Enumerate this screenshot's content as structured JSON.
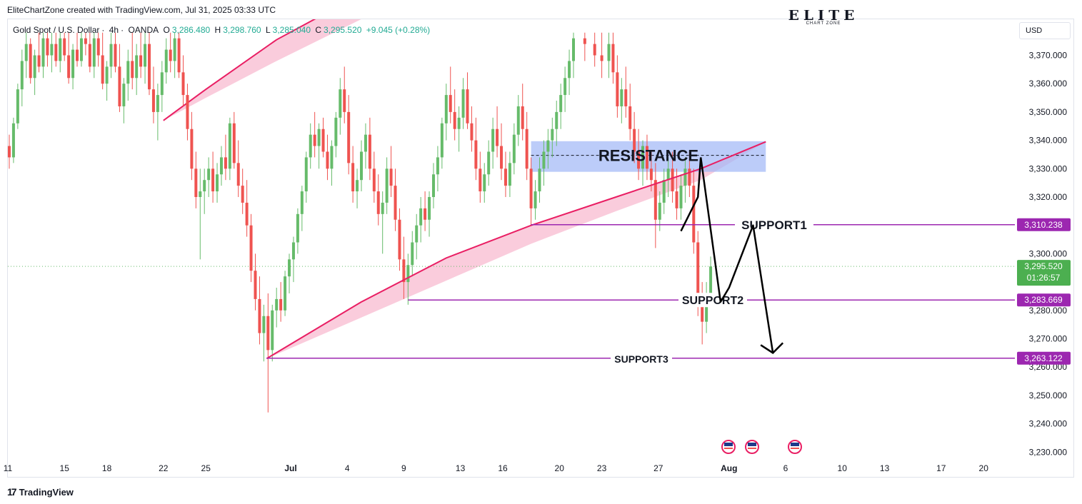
{
  "attribution": "EliteChartZone created with TradingView.com, Jul 31, 2025 03:33 UTC",
  "symbol": {
    "name": "Gold Spot / U.S. Dollar",
    "interval": "4h",
    "source": "OANDA",
    "open_label": "O",
    "open": "3,286.480",
    "high_label": "H",
    "high": "3,298.760",
    "low_label": "L",
    "low": "3,285.040",
    "close_label": "C",
    "close": "3,295.520",
    "change": "+9.045 (+0.28%)"
  },
  "currency": "USD",
  "brand_logo": {
    "small": "CHART ZONE"
  },
  "footer_logo": "TradingView",
  "colors": {
    "up": "#22ab94",
    "down": "#f23645",
    "candle_up": "#66bb6a",
    "candle_down": "#ef5350",
    "trend_line": "#e91e63",
    "channel_fill": "#f8bbd0",
    "resistance_zone": "#9fb7f7",
    "support_line": "#9c27b0",
    "support_tag": "#9c27b0",
    "price_tag": "#4caf50",
    "arrow": "#000000"
  },
  "chart_data": {
    "type": "candlestick",
    "y_ticks": [
      "3,370.000",
      "3,360.000",
      "3,350.000",
      "3,340.000",
      "3,330.000",
      "3,320.000",
      "3,300.000",
      "3,280.000",
      "3,270.000",
      "3,260.000",
      "3,250.000",
      "3,240.000",
      "3,230.000"
    ],
    "x_ticks": [
      {
        "label": "11",
        "day": 11
      },
      {
        "label": "15",
        "day": 15
      },
      {
        "label": "18",
        "day": 18
      },
      {
        "label": "22",
        "day": 22
      },
      {
        "label": "25",
        "day": 25
      },
      {
        "label": "Jul",
        "day": 31,
        "bold": true
      },
      {
        "label": "4",
        "day": 35
      },
      {
        "label": "9",
        "day": 39
      },
      {
        "label": "13",
        "day": 43
      },
      {
        "label": "16",
        "day": 46
      },
      {
        "label": "20",
        "day": 50
      },
      {
        "label": "23",
        "day": 53
      },
      {
        "label": "27",
        "day": 57
      },
      {
        "label": "Aug",
        "day": 62,
        "bold": true
      },
      {
        "label": "6",
        "day": 66
      },
      {
        "label": "10",
        "day": 70
      },
      {
        "label": "13",
        "day": 73
      },
      {
        "label": "17",
        "day": 77
      },
      {
        "label": "20",
        "day": 80
      }
    ],
    "ylim": [
      3226,
      3378
    ],
    "current_price": {
      "value": 3295.52,
      "label": "3,295.520",
      "countdown": "01:26:57"
    },
    "resistance_zone": {
      "label": "RESISTANCE",
      "low": 3328.9,
      "high": 3339.7,
      "mid": 3334.7,
      "day_start": 48.0,
      "day_end": 64.6
    },
    "supports": [
      {
        "label": "SUPPORT1",
        "value": 3310.238,
        "tag": "3,310.238",
        "day_start": 48.0
      },
      {
        "label": "SUPPORT2",
        "value": 3283.669,
        "tag": "3,283.669",
        "day_start": 39.3
      },
      {
        "label": "SUPPORT3",
        "value": 3263.122,
        "tag": "3,263.122",
        "day_start": 29.3
      }
    ],
    "channel_lower": [
      [
        29.3,
        3263.0
      ],
      [
        36.0,
        3283.0
      ],
      [
        42.0,
        3298.5
      ],
      [
        48.0,
        3310.0
      ],
      [
        54.0,
        3320.0
      ],
      [
        60.0,
        3330.0
      ],
      [
        64.6,
        3339.5
      ]
    ],
    "channel_upper_start": [
      [
        29.3,
        3263.0
      ],
      [
        36.0,
        3277.5
      ],
      [
        42.0,
        3290.5
      ],
      [
        48.0,
        3303.5
      ],
      [
        54.0,
        3315.0
      ],
      [
        60.0,
        3326.0
      ]
    ],
    "channel_left_lower": [
      [
        22.0,
        3347.0
      ],
      [
        25.0,
        3358.0
      ],
      [
        30.0,
        3375.5
      ],
      [
        36.5,
        3393.0
      ]
    ],
    "channel_left_upper": [
      [
        22.0,
        3347.0
      ],
      [
        25.0,
        3355.0
      ],
      [
        30.0,
        3368.0
      ],
      [
        36.5,
        3384.0
      ]
    ],
    "projection_arrow": [
      [
        58.6,
        3308.0
      ],
      [
        59.8,
        3320.0
      ],
      [
        60.0,
        3334.0
      ],
      [
        61.4,
        3283.0
      ],
      [
        62.0,
        3288.0
      ],
      [
        63.7,
        3310.0
      ],
      [
        65.1,
        3265.0
      ]
    ],
    "candles": [
      [
        10.5,
        3325,
        3335,
        3320,
        3332
      ],
      [
        10.8,
        3332,
        3340,
        3328,
        3338
      ],
      [
        11.1,
        3338,
        3342,
        3330,
        3334
      ],
      [
        11.4,
        3334,
        3348,
        3332,
        3346
      ],
      [
        11.7,
        3346,
        3360,
        3344,
        3358
      ],
      [
        12.0,
        3358,
        3372,
        3352,
        3368
      ],
      [
        12.3,
        3368,
        3378,
        3362,
        3374
      ],
      [
        12.6,
        3374,
        3376,
        3360,
        3362
      ],
      [
        12.9,
        3362,
        3372,
        3356,
        3370
      ],
      [
        13.2,
        3370,
        3378,
        3364,
        3366
      ],
      [
        13.5,
        3366,
        3378,
        3362,
        3376
      ],
      [
        13.8,
        3376,
        3378,
        3366,
        3370
      ],
      [
        14.1,
        3370,
        3378,
        3364,
        3374
      ],
      [
        14.4,
        3374,
        3378,
        3366,
        3368
      ],
      [
        14.7,
        3368,
        3378,
        3364,
        3376
      ],
      [
        15.0,
        3376,
        3378,
        3368,
        3370
      ],
      [
        15.3,
        3370,
        3378,
        3360,
        3362
      ],
      [
        15.6,
        3362,
        3374,
        3358,
        3372
      ],
      [
        15.9,
        3372,
        3378,
        3366,
        3368
      ],
      [
        16.2,
        3368,
        3378,
        3366,
        3376
      ],
      [
        16.5,
        3376,
        3378,
        3370,
        3374
      ],
      [
        16.8,
        3374,
        3378,
        3364,
        3366
      ],
      [
        17.1,
        3366,
        3378,
        3362,
        3376
      ],
      [
        17.4,
        3376,
        3378,
        3366,
        3370
      ],
      [
        17.7,
        3370,
        3378,
        3358,
        3360
      ],
      [
        18.0,
        3360,
        3368,
        3354,
        3366
      ],
      [
        18.3,
        3366,
        3378,
        3362,
        3374
      ],
      [
        18.6,
        3374,
        3378,
        3364,
        3366
      ],
      [
        18.9,
        3366,
        3374,
        3350,
        3352
      ],
      [
        19.2,
        3352,
        3362,
        3346,
        3360
      ],
      [
        19.5,
        3360,
        3372,
        3354,
        3368
      ],
      [
        19.8,
        3368,
        3378,
        3358,
        3362
      ],
      [
        20.1,
        3362,
        3374,
        3356,
        3370
      ],
      [
        20.4,
        3370,
        3378,
        3362,
        3366
      ],
      [
        20.7,
        3366,
        3378,
        3360,
        3374
      ],
      [
        21.0,
        3374,
        3378,
        3356,
        3358
      ],
      [
        21.3,
        3358,
        3366,
        3346,
        3350
      ],
      [
        21.6,
        3350,
        3360,
        3340,
        3356
      ],
      [
        21.9,
        3356,
        3368,
        3350,
        3364
      ],
      [
        22.2,
        3364,
        3376,
        3360,
        3372
      ],
      [
        22.5,
        3372,
        3378,
        3364,
        3368
      ],
      [
        22.8,
        3368,
        3378,
        3362,
        3376
      ],
      [
        23.1,
        3376,
        3378,
        3362,
        3364
      ],
      [
        23.4,
        3364,
        3370,
        3352,
        3356
      ],
      [
        23.7,
        3356,
        3360,
        3340,
        3344
      ],
      [
        24.0,
        3344,
        3350,
        3326,
        3330
      ],
      [
        24.3,
        3330,
        3336,
        3316,
        3320
      ],
      [
        24.6,
        3320,
        3330,
        3298,
        3322
      ],
      [
        24.9,
        3322,
        3330,
        3314,
        3326
      ],
      [
        25.2,
        3326,
        3334,
        3320,
        3330
      ],
      [
        25.5,
        3330,
        3336,
        3318,
        3322
      ],
      [
        25.8,
        3322,
        3332,
        3318,
        3328
      ],
      [
        26.1,
        3328,
        3338,
        3324,
        3334
      ],
      [
        26.4,
        3334,
        3342,
        3326,
        3330
      ],
      [
        26.7,
        3330,
        3348,
        3326,
        3346
      ],
      [
        27.0,
        3346,
        3350,
        3330,
        3332
      ],
      [
        27.3,
        3332,
        3340,
        3320,
        3324
      ],
      [
        27.6,
        3324,
        3330,
        3314,
        3318
      ],
      [
        27.9,
        3318,
        3326,
        3306,
        3310
      ],
      [
        28.2,
        3310,
        3314,
        3290,
        3294
      ],
      [
        28.5,
        3294,
        3300,
        3280,
        3284
      ],
      [
        28.8,
        3284,
        3292,
        3268,
        3272
      ],
      [
        29.1,
        3272,
        3282,
        3262,
        3278
      ],
      [
        29.4,
        3278,
        3286,
        3244,
        3266
      ],
      [
        29.7,
        3266,
        3282,
        3262,
        3280
      ],
      [
        30.0,
        3280,
        3288,
        3274,
        3284
      ],
      [
        30.3,
        3284,
        3290,
        3276,
        3280
      ],
      [
        30.6,
        3280,
        3294,
        3278,
        3292
      ],
      [
        30.9,
        3292,
        3300,
        3286,
        3298
      ],
      [
        31.2,
        3298,
        3306,
        3290,
        3304
      ],
      [
        31.5,
        3304,
        3316,
        3300,
        3314
      ],
      [
        31.8,
        3314,
        3324,
        3308,
        3322
      ],
      [
        32.1,
        3322,
        3336,
        3318,
        3334
      ],
      [
        32.4,
        3334,
        3346,
        3330,
        3342
      ],
      [
        32.7,
        3342,
        3350,
        3334,
        3338
      ],
      [
        33.0,
        3338,
        3346,
        3330,
        3344
      ],
      [
        33.3,
        3344,
        3348,
        3334,
        3336
      ],
      [
        33.6,
        3336,
        3342,
        3326,
        3330
      ],
      [
        33.9,
        3330,
        3340,
        3324,
        3338
      ],
      [
        34.2,
        3338,
        3350,
        3334,
        3348
      ],
      [
        34.5,
        3348,
        3362,
        3342,
        3358
      ],
      [
        34.8,
        3358,
        3366,
        3346,
        3350
      ],
      [
        35.1,
        3350,
        3356,
        3328,
        3332
      ],
      [
        35.4,
        3332,
        3338,
        3318,
        3322
      ],
      [
        35.7,
        3322,
        3330,
        3316,
        3326
      ],
      [
        36.0,
        3326,
        3340,
        3322,
        3336
      ],
      [
        36.3,
        3336,
        3346,
        3330,
        3342
      ],
      [
        36.6,
        3342,
        3348,
        3326,
        3330
      ],
      [
        36.9,
        3330,
        3336,
        3318,
        3322
      ],
      [
        37.2,
        3322,
        3328,
        3310,
        3314
      ],
      [
        37.5,
        3314,
        3322,
        3300,
        3318
      ],
      [
        37.8,
        3318,
        3334,
        3314,
        3330
      ],
      [
        38.1,
        3330,
        3338,
        3320,
        3324
      ],
      [
        38.4,
        3324,
        3330,
        3308,
        3312
      ],
      [
        38.7,
        3312,
        3316,
        3294,
        3298
      ],
      [
        39.0,
        3298,
        3306,
        3284,
        3290
      ],
      [
        39.3,
        3290,
        3300,
        3282,
        3296
      ],
      [
        39.6,
        3296,
        3308,
        3292,
        3304
      ],
      [
        39.9,
        3304,
        3314,
        3298,
        3310
      ],
      [
        40.2,
        3310,
        3320,
        3304,
        3316
      ],
      [
        40.5,
        3316,
        3322,
        3308,
        3312
      ],
      [
        40.8,
        3312,
        3322,
        3306,
        3320
      ],
      [
        41.1,
        3320,
        3332,
        3316,
        3328
      ],
      [
        41.4,
        3328,
        3338,
        3322,
        3334
      ],
      [
        41.7,
        3334,
        3348,
        3330,
        3346
      ],
      [
        42.0,
        3346,
        3360,
        3340,
        3356
      ],
      [
        42.3,
        3356,
        3366,
        3346,
        3350
      ],
      [
        42.6,
        3350,
        3358,
        3340,
        3344
      ],
      [
        42.9,
        3344,
        3352,
        3336,
        3348
      ],
      [
        43.2,
        3348,
        3362,
        3344,
        3358
      ],
      [
        43.5,
        3358,
        3364,
        3344,
        3346
      ],
      [
        43.8,
        3346,
        3352,
        3336,
        3340
      ],
      [
        44.1,
        3340,
        3348,
        3326,
        3330
      ],
      [
        44.4,
        3330,
        3336,
        3318,
        3322
      ],
      [
        44.7,
        3322,
        3332,
        3318,
        3328
      ],
      [
        45.0,
        3328,
        3340,
        3324,
        3336
      ],
      [
        45.3,
        3336,
        3348,
        3330,
        3344
      ],
      [
        45.6,
        3344,
        3352,
        3334,
        3338
      ],
      [
        45.9,
        3338,
        3346,
        3326,
        3330
      ],
      [
        46.2,
        3330,
        3336,
        3320,
        3324
      ],
      [
        46.5,
        3324,
        3336,
        3320,
        3332
      ],
      [
        46.8,
        3332,
        3346,
        3328,
        3342
      ],
      [
        47.1,
        3342,
        3356,
        3338,
        3352
      ],
      [
        47.4,
        3352,
        3360,
        3340,
        3344
      ],
      [
        47.7,
        3344,
        3350,
        3326,
        3330
      ],
      [
        48.0,
        3330,
        3334,
        3310,
        3316
      ],
      [
        48.3,
        3316,
        3326,
        3312,
        3322
      ],
      [
        48.6,
        3322,
        3334,
        3318,
        3330
      ],
      [
        48.9,
        3330,
        3340,
        3324,
        3336
      ],
      [
        49.2,
        3336,
        3344,
        3330,
        3340
      ],
      [
        49.5,
        3340,
        3348,
        3334,
        3344
      ],
      [
        49.8,
        3344,
        3354,
        3338,
        3350
      ],
      [
        50.1,
        3350,
        3360,
        3344,
        3356
      ],
      [
        50.4,
        3356,
        3366,
        3350,
        3362
      ],
      [
        50.7,
        3362,
        3372,
        3356,
        3368
      ],
      [
        51.0,
        3368,
        3378,
        3362,
        3376
      ],
      [
        51.8,
        3376,
        3378,
        3368,
        3374
      ],
      [
        52.5,
        3374,
        3378,
        3366,
        3370
      ],
      [
        53.0,
        3370,
        3378,
        3362,
        3368
      ],
      [
        53.5,
        3368,
        3378,
        3362,
        3374
      ],
      [
        53.8,
        3374,
        3378,
        3360,
        3364
      ],
      [
        54.1,
        3364,
        3370,
        3348,
        3352
      ],
      [
        54.4,
        3352,
        3362,
        3346,
        3358
      ],
      [
        54.7,
        3358,
        3366,
        3348,
        3352
      ],
      [
        55.0,
        3352,
        3360,
        3340,
        3344
      ],
      [
        55.3,
        3344,
        3350,
        3332,
        3336
      ],
      [
        55.6,
        3336,
        3344,
        3326,
        3330
      ],
      [
        55.9,
        3330,
        3340,
        3324,
        3338
      ],
      [
        56.2,
        3338,
        3342,
        3326,
        3330
      ],
      [
        56.5,
        3330,
        3336,
        3322,
        3326
      ],
      [
        56.8,
        3326,
        3332,
        3302,
        3312
      ],
      [
        57.1,
        3312,
        3322,
        3308,
        3318
      ],
      [
        57.4,
        3318,
        3330,
        3314,
        3326
      ],
      [
        57.7,
        3326,
        3334,
        3320,
        3330
      ],
      [
        58.0,
        3330,
        3336,
        3318,
        3322
      ],
      [
        58.3,
        3322,
        3330,
        3312,
        3316
      ],
      [
        58.6,
        3316,
        3328,
        3312,
        3324
      ],
      [
        58.9,
        3324,
        3334,
        3318,
        3330
      ],
      [
        59.2,
        3330,
        3336,
        3320,
        3324
      ],
      [
        59.5,
        3324,
        3330,
        3300,
        3304
      ],
      [
        59.8,
        3304,
        3308,
        3278,
        3283
      ],
      [
        60.1,
        3283,
        3290,
        3268,
        3276
      ],
      [
        60.4,
        3276,
        3290,
        3272,
        3286
      ],
      [
        60.7,
        3286,
        3299,
        3285,
        3295.5
      ]
    ]
  }
}
